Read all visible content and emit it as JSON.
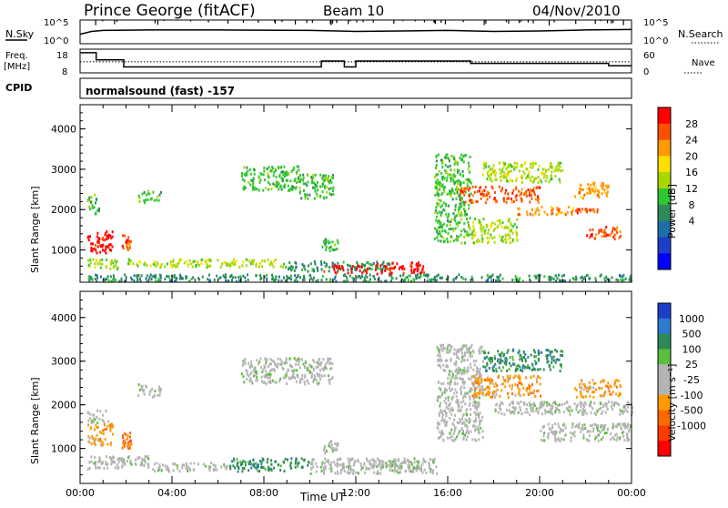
{
  "header": {
    "station": "Prince George (fitACF)",
    "beam": "Beam 10",
    "date": "04/Nov/2010",
    "program": "normalsound (fast) -157"
  },
  "status_panel": {
    "nsky_label": "N.Sky",
    "nsearch_label": "N.Search",
    "freq_label_top": "Freq.",
    "freq_label_bottom": "[MHz]",
    "nave_label": "Nave",
    "cpid_label": "CPID",
    "nsky_ticks": [
      "10^5",
      "10^0"
    ],
    "nsearch_ticks": [
      "10^5",
      "10^0"
    ],
    "freq_ticks": [
      "18",
      "8"
    ],
    "nave_ticks": [
      "60",
      "0"
    ]
  },
  "chart_data": [
    {
      "type": "heatmap",
      "name": "power",
      "xlabel": "",
      "ylabel": "Slant Range [km]",
      "xlim": [
        0,
        24
      ],
      "ylim": [
        200,
        4600
      ],
      "y_ticks": [
        "1000",
        "2000",
        "3000",
        "4000"
      ],
      "colorbar": {
        "label": "Power [dB]",
        "ticks": [
          "28",
          "24",
          "20",
          "16",
          "12",
          "8",
          "4"
        ],
        "colors": [
          "#ff0000",
          "#ff5000",
          "#ff9a00",
          "#ffe000",
          "#a8d800",
          "#30c830",
          "#2e8b57",
          "#1e6fa8",
          "#1c3fc8",
          "#0000ff"
        ]
      },
      "features": [
        {
          "t0": 0.3,
          "t1": 1.4,
          "r0": 950,
          "r1": 1500,
          "level": 28
        },
        {
          "t0": 1.8,
          "t1": 2.2,
          "r0": 1000,
          "r1": 1400,
          "level": 24
        },
        {
          "t0": 0.3,
          "t1": 1.7,
          "r0": 550,
          "r1": 800,
          "level": 12
        },
        {
          "t0": 2.0,
          "t1": 9.0,
          "r0": 600,
          "r1": 800,
          "level": 12
        },
        {
          "t0": 9.0,
          "t1": 13.5,
          "r0": 500,
          "r1": 750,
          "level": 4
        },
        {
          "t0": 10.5,
          "t1": 12.5,
          "r0": 450,
          "r1": 650,
          "level": 28
        },
        {
          "t0": 12.8,
          "t1": 15.0,
          "r0": 420,
          "r1": 720,
          "level": 28
        },
        {
          "t0": 0.3,
          "t1": 24.0,
          "r0": 250,
          "r1": 420,
          "level": 4
        },
        {
          "t0": 15.4,
          "t1": 17.0,
          "r0": 1200,
          "r1": 3400,
          "level": 8
        },
        {
          "t0": 17.0,
          "t1": 19.0,
          "r0": 1200,
          "r1": 1800,
          "level": 12
        },
        {
          "t0": 16.5,
          "t1": 20.0,
          "r0": 2200,
          "r1": 2600,
          "level": 24
        },
        {
          "t0": 19.0,
          "t1": 21.5,
          "r0": 1900,
          "r1": 2100,
          "level": 20
        },
        {
          "t0": 21.5,
          "t1": 22.5,
          "r0": 1950,
          "r1": 2050,
          "level": 24
        },
        {
          "t0": 22.0,
          "t1": 23.5,
          "r0": 1300,
          "r1": 1600,
          "level": 24
        },
        {
          "t0": 17.5,
          "t1": 21.0,
          "r0": 2700,
          "r1": 3200,
          "level": 12
        },
        {
          "t0": 21.5,
          "t1": 23.0,
          "r0": 2300,
          "r1": 2700,
          "level": 20
        },
        {
          "t0": 7.0,
          "t1": 9.5,
          "r0": 2500,
          "r1": 3100,
          "level": 8
        },
        {
          "t0": 9.5,
          "t1": 11.0,
          "r0": 2300,
          "r1": 2900,
          "level": 8
        },
        {
          "t0": 2.5,
          "t1": 3.5,
          "r0": 2200,
          "r1": 2500,
          "level": 8
        },
        {
          "t0": 0.3,
          "t1": 0.8,
          "r0": 1900,
          "r1": 2400,
          "level": 8
        },
        {
          "t0": 10.5,
          "t1": 11.2,
          "r0": 1000,
          "r1": 1300,
          "level": 8
        }
      ]
    },
    {
      "type": "heatmap",
      "name": "velocity",
      "xlabel": "Time UT",
      "ylabel": "Slant Range [km]",
      "xlim": [
        0,
        24
      ],
      "ylim": [
        200,
        4600
      ],
      "x_ticks": [
        "00:00",
        "04:00",
        "08:00",
        "12:00",
        "16:00",
        "20:00",
        "00:00"
      ],
      "y_ticks": [
        "1000",
        "2000",
        "3000",
        "4000"
      ],
      "colorbar": {
        "label": "Velocity [m s⁻¹]",
        "ticks": [
          "1000",
          "500",
          "100",
          "25",
          "-25",
          "-100",
          "-500",
          "-1000"
        ],
        "colors": [
          "#1c3fc8",
          "#2e7ad1",
          "#2e8b57",
          "#5abf3c",
          "#b4b4b4",
          "#b4b4b4",
          "#ff9a00",
          "#ff6a00",
          "#ff3a00",
          "#ff0000"
        ]
      },
      "features": [
        {
          "t0": 0.3,
          "t1": 1.4,
          "r0": 1100,
          "r1": 1600,
          "level": -500
        },
        {
          "t0": 1.8,
          "t1": 2.2,
          "r0": 1000,
          "r1": 1400,
          "level": -1000
        },
        {
          "t0": 0.3,
          "t1": 1.2,
          "r0": 1600,
          "r1": 1900,
          "level": -100
        },
        {
          "t0": 0.3,
          "t1": 3.0,
          "r0": 550,
          "r1": 850,
          "level": 0
        },
        {
          "t0": 3.0,
          "t1": 6.5,
          "r0": 500,
          "r1": 700,
          "level": -100
        },
        {
          "t0": 6.5,
          "t1": 10.0,
          "r0": 500,
          "r1": 800,
          "level": 100
        },
        {
          "t0": 10.0,
          "t1": 15.5,
          "r0": 450,
          "r1": 800,
          "level": 0
        },
        {
          "t0": 12.5,
          "t1": 15.0,
          "r0": 550,
          "r1": 750,
          "level": -100
        },
        {
          "t0": 15.5,
          "t1": 17.5,
          "r0": 1200,
          "r1": 3400,
          "level": 0
        },
        {
          "t0": 17.0,
          "t1": 20.0,
          "r0": 2200,
          "r1": 2700,
          "level": -500
        },
        {
          "t0": 17.5,
          "t1": 21.0,
          "r0": 2800,
          "r1": 3300,
          "level": 100
        },
        {
          "t0": 18.0,
          "t1": 24.0,
          "r0": 1800,
          "r1": 2100,
          "level": 0
        },
        {
          "t0": 21.5,
          "t1": 23.5,
          "r0": 2200,
          "r1": 2600,
          "level": -500
        },
        {
          "t0": 20.0,
          "t1": 24.0,
          "r0": 1200,
          "r1": 1600,
          "level": 0
        },
        {
          "t0": 7.0,
          "t1": 11.0,
          "r0": 2500,
          "r1": 3100,
          "level": 0
        },
        {
          "t0": 2.5,
          "t1": 3.5,
          "r0": 2200,
          "r1": 2500,
          "level": 0
        },
        {
          "t0": 10.5,
          "t1": 11.2,
          "r0": 900,
          "r1": 1200,
          "level": 0
        }
      ]
    },
    {
      "type": "line",
      "name": "frequency",
      "xlim": [
        0,
        24
      ],
      "ylim": [
        8,
        18
      ],
      "x": [
        0,
        0.7,
        0.7,
        1.9,
        1.9,
        10.5,
        10.5,
        11.5,
        11.5,
        12.0,
        12.0,
        17.0,
        17.0,
        23.0,
        23.0,
        24.0
      ],
      "values": [
        16.5,
        16.5,
        13.5,
        13.5,
        10.5,
        10.5,
        13.0,
        13.0,
        10.5,
        10.5,
        13.0,
        13.0,
        12.0,
        12.0,
        11.0,
        11.0
      ]
    },
    {
      "type": "line",
      "name": "nave",
      "xlim": [
        0,
        24
      ],
      "ylim": [
        0,
        60
      ],
      "x": [
        0,
        24
      ],
      "values": [
        28,
        28
      ]
    },
    {
      "type": "line",
      "name": "nsky",
      "xlim": [
        0,
        24
      ],
      "ylim": [
        0,
        5
      ],
      "x": [
        0,
        0.5,
        1.0,
        3.0,
        6.0,
        10.0,
        12.0,
        14.0,
        16.0,
        18.0,
        20.0,
        22.0,
        24.0
      ],
      "values": [
        2.0,
        2.6,
        2.8,
        2.9,
        2.9,
        2.8,
        2.6,
        2.7,
        2.8,
        2.6,
        2.7,
        2.9,
        3.0
      ]
    }
  ]
}
